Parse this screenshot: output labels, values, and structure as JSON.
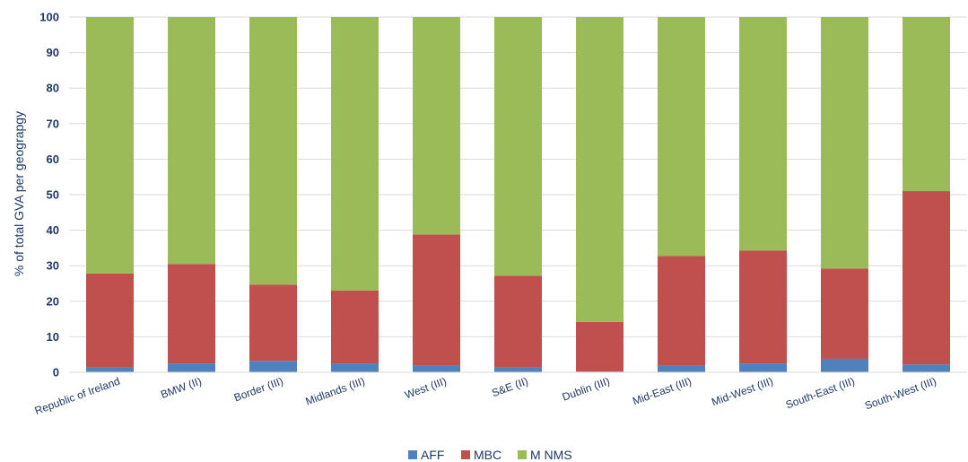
{
  "chart_data": {
    "type": "bar",
    "stacked": true,
    "ylabel": "% of total GVA per geograpgy",
    "xlabel": "",
    "ylim": [
      0,
      100
    ],
    "yticks": [
      0,
      10,
      20,
      30,
      40,
      50,
      60,
      70,
      80,
      90,
      100
    ],
    "grid": true,
    "legend_position": "bottom",
    "categories": [
      "Republic of Ireland",
      "BMW (II)",
      "Border (III)",
      "Midlands (III)",
      "West (III)",
      "S&E (II)",
      "Dublin (III)",
      "Mid-East (III)",
      "Mid-West (III)",
      "South-East (III)",
      "South-West (III)"
    ],
    "series": [
      {
        "name": "AFF",
        "color": "#4f81bd",
        "values": [
          1.5,
          2.5,
          3.2,
          2.5,
          2.0,
          1.5,
          0.2,
          2.0,
          2.5,
          3.8,
          2.2
        ]
      },
      {
        "name": "MBC",
        "color": "#c0504d",
        "values": [
          26.3,
          28.0,
          21.5,
          20.5,
          36.8,
          25.7,
          14.0,
          30.7,
          31.8,
          25.4,
          48.8
        ]
      },
      {
        "name": "M  NMS",
        "color": "#9bbb59",
        "values": [
          72.2,
          69.5,
          75.3,
          77.0,
          61.2,
          72.8,
          85.8,
          67.3,
          65.7,
          70.8,
          49.0
        ]
      }
    ]
  }
}
